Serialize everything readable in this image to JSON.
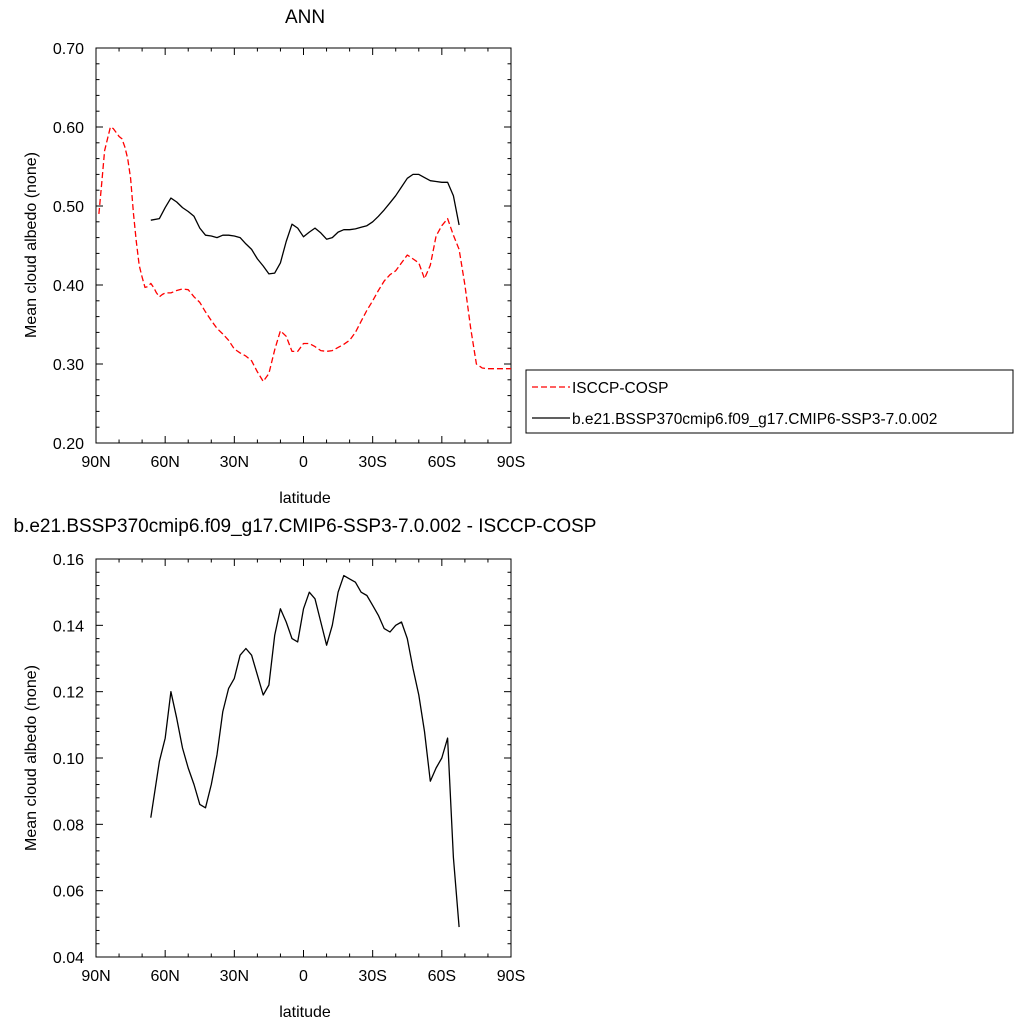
{
  "chart_data": [
    {
      "type": "line",
      "title": "ANN",
      "xlabel": "latitude",
      "ylabel": "Mean cloud albedo (none)",
      "xlim": [
        90,
        -90
      ],
      "ylim": [
        0.2,
        0.7
      ],
      "x_tick_values": [
        90,
        60,
        30,
        0,
        -30,
        -60,
        -90
      ],
      "x_tick_labels": [
        "90N",
        "60N",
        "30N",
        "0",
        "30S",
        "60S",
        "90S"
      ],
      "y_tick_values": [
        0.2,
        0.3,
        0.4,
        0.5,
        0.6,
        0.7
      ],
      "y_tick_labels": [
        "0.20",
        "0.30",
        "0.40",
        "0.50",
        "0.60",
        "0.70"
      ],
      "legend_position": "right",
      "series": [
        {
          "name": "ISCCP-COSP",
          "color": "#ff0000",
          "dash": true,
          "x": [
            88.75,
            87.5,
            86.25,
            85,
            83.75,
            82.5,
            81.25,
            80,
            78.75,
            77.5,
            76.25,
            75,
            73.75,
            72.5,
            71.25,
            70,
            68.75,
            67.5,
            66.25,
            65,
            63.75,
            62.5,
            61.25,
            60,
            57.5,
            55,
            52.5,
            50,
            47.5,
            45,
            42.5,
            40,
            37.5,
            35,
            32.5,
            30,
            27.5,
            25,
            22.5,
            20,
            17.5,
            15,
            12.5,
            10,
            7.5,
            5,
            2.5,
            0,
            -2.5,
            -5,
            -7.5,
            -10,
            -12.5,
            -15,
            -17.5,
            -20,
            -22.5,
            -25,
            -27.5,
            -30,
            -32.5,
            -35,
            -37.5,
            -40,
            -42.5,
            -45,
            -47.5,
            -50,
            -52.5,
            -55,
            -57.5,
            -60,
            -62.5,
            -65,
            -67.5,
            -70,
            -72.5,
            -75,
            -77.5,
            -80,
            -82.5,
            -85,
            -87.5,
            -90
          ],
          "y": [
            0.49,
            0.53,
            0.57,
            0.585,
            0.6,
            0.598,
            0.593,
            0.588,
            0.585,
            0.575,
            0.56,
            0.535,
            0.49,
            0.455,
            0.425,
            0.41,
            0.397,
            0.398,
            0.402,
            0.397,
            0.39,
            0.385,
            0.388,
            0.39,
            0.39,
            0.393,
            0.395,
            0.394,
            0.385,
            0.378,
            0.366,
            0.355,
            0.345,
            0.338,
            0.33,
            0.319,
            0.314,
            0.31,
            0.304,
            0.29,
            0.278,
            0.288,
            0.318,
            0.342,
            0.335,
            0.316,
            0.316,
            0.326,
            0.326,
            0.322,
            0.317,
            0.316,
            0.317,
            0.321,
            0.325,
            0.33,
            0.34,
            0.354,
            0.368,
            0.38,
            0.393,
            0.405,
            0.413,
            0.418,
            0.428,
            0.438,
            0.433,
            0.428,
            0.408,
            0.425,
            0.462,
            0.475,
            0.484,
            0.463,
            0.445,
            0.4,
            0.345,
            0.3,
            0.295,
            0.294,
            0.294,
            0.294,
            0.294,
            0.294
          ]
        },
        {
          "name": "b.e21.BSSP370cmip6.f09_g17.CMIP6-SSP3-7.0.002",
          "color": "#000000",
          "dash": false,
          "x": [
            66.25,
            62.5,
            60,
            57.5,
            55,
            52.5,
            50,
            47.5,
            45,
            42.5,
            40,
            37.5,
            35,
            32.5,
            30,
            27.5,
            25,
            22.5,
            20,
            17.5,
            15,
            12.5,
            10,
            7.5,
            5,
            2.5,
            0,
            -2.5,
            -5,
            -7.5,
            -10,
            -12.5,
            -15,
            -17.5,
            -20,
            -22.5,
            -25,
            -27.5,
            -30,
            -32.5,
            -35,
            -37.5,
            -40,
            -42.5,
            -45,
            -47.5,
            -50,
            -52.5,
            -55,
            -57.5,
            -60,
            -62.5,
            -65,
            -67.5
          ],
          "y": [
            0.482,
            0.484,
            0.498,
            0.51,
            0.505,
            0.498,
            0.493,
            0.487,
            0.472,
            0.463,
            0.462,
            0.46,
            0.463,
            0.463,
            0.462,
            0.46,
            0.452,
            0.445,
            0.433,
            0.424,
            0.414,
            0.415,
            0.428,
            0.455,
            0.477,
            0.472,
            0.461,
            0.467,
            0.472,
            0.466,
            0.458,
            0.46,
            0.467,
            0.47,
            0.47,
            0.471,
            0.473,
            0.475,
            0.48,
            0.487,
            0.495,
            0.504,
            0.513,
            0.524,
            0.535,
            0.54,
            0.54,
            0.536,
            0.532,
            0.531,
            0.53,
            0.53,
            0.513,
            0.476
          ]
        }
      ]
    },
    {
      "type": "line",
      "title": "b.e21.BSSP370cmip6.f09_g17.CMIP6-SSP3-7.0.002 - ISCCP-COSP",
      "xlabel": "latitude",
      "ylabel": "Mean cloud albedo (none)",
      "xlim": [
        90,
        -90
      ],
      "ylim": [
        0.04,
        0.16
      ],
      "x_tick_values": [
        90,
        60,
        30,
        0,
        -30,
        -60,
        -90
      ],
      "x_tick_labels": [
        "90N",
        "60N",
        "30N",
        "0",
        "30S",
        "60S",
        "90S"
      ],
      "y_tick_values": [
        0.04,
        0.06,
        0.08,
        0.1,
        0.12,
        0.14,
        0.16
      ],
      "y_tick_labels": [
        "0.04",
        "0.06",
        "0.08",
        "0.10",
        "0.12",
        "0.14",
        "0.16"
      ],
      "series": [
        {
          "color": "#000000",
          "dash": false,
          "x": [
            66.25,
            62.5,
            60,
            57.5,
            55,
            52.5,
            50,
            47.5,
            45,
            42.5,
            40,
            37.5,
            35,
            32.5,
            30,
            27.5,
            25,
            22.5,
            20,
            17.5,
            15,
            12.5,
            10,
            7.5,
            5,
            2.5,
            0,
            -2.5,
            -5,
            -7.5,
            -10,
            -12.5,
            -15,
            -17.5,
            -20,
            -22.5,
            -25,
            -27.5,
            -30,
            -32.5,
            -35,
            -37.5,
            -40,
            -42.5,
            -45,
            -47.5,
            -50,
            -52.5,
            -55,
            -57.5,
            -60,
            -62.5,
            -65,
            -67.5
          ],
          "y": [
            0.082,
            0.099,
            0.106,
            0.12,
            0.112,
            0.103,
            0.097,
            0.092,
            0.086,
            0.085,
            0.092,
            0.101,
            0.114,
            0.121,
            0.124,
            0.131,
            0.133,
            0.131,
            0.125,
            0.119,
            0.122,
            0.137,
            0.145,
            0.141,
            0.136,
            0.135,
            0.145,
            0.15,
            0.148,
            0.141,
            0.134,
            0.14,
            0.15,
            0.155,
            0.154,
            0.153,
            0.15,
            0.149,
            0.146,
            0.143,
            0.139,
            0.138,
            0.14,
            0.141,
            0.136,
            0.127,
            0.119,
            0.108,
            0.093,
            0.097,
            0.1,
            0.106,
            0.07,
            0.049
          ]
        }
      ]
    }
  ]
}
